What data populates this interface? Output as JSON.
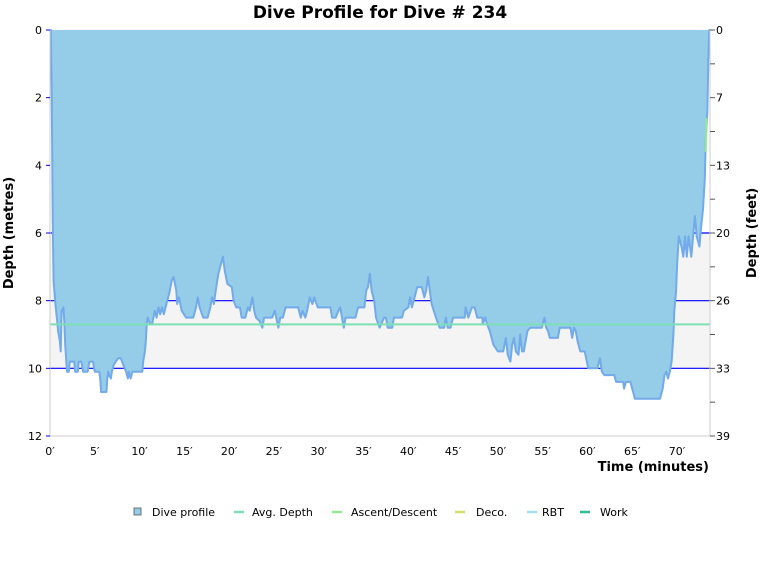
{
  "chart_data": {
    "type": "area",
    "title": "Dive Profile for Dive # 234",
    "xlabel": "Time (minutes)",
    "ylabel": "Depth (metres)",
    "y2label": "Depth (feet)",
    "xlim": [
      0,
      73.7
    ],
    "ylim": [
      0,
      12
    ],
    "y_inverted": true,
    "x_ticks": [
      "0′",
      "5′",
      "10′",
      "15′",
      "20′",
      "25′",
      "30′",
      "35′",
      "40′",
      "45′",
      "50′",
      "55′",
      "60′",
      "65′",
      "70′"
    ],
    "x_tick_values": [
      0,
      5,
      10,
      15,
      20,
      25,
      30,
      35,
      40,
      45,
      50,
      55,
      60,
      65,
      70
    ],
    "y_ticks": [
      "0",
      "2",
      "4",
      "6",
      "8",
      "10",
      "12"
    ],
    "y_tick_values": [
      0,
      2,
      4,
      6,
      8,
      10,
      12
    ],
    "y2_ticks": [
      "0",
      "7",
      "13",
      "20",
      "26",
      "33",
      "39"
    ],
    "reference_lines_m": [
      6,
      8,
      10
    ],
    "shaded_band_m": [
      6,
      10
    ],
    "avg_depth_m": 8.7,
    "legend_position": "bottom",
    "legend": [
      {
        "name": "Dive profile",
        "color": "#95cde8",
        "marker": "square"
      },
      {
        "name": "Avg. Depth",
        "color": "#7ddfb4",
        "marker": "line"
      },
      {
        "name": "Ascent/Descent",
        "color": "#94e894",
        "marker": "line"
      },
      {
        "name": "Deco.",
        "color": "#d6e06e",
        "marker": "line"
      },
      {
        "name": "RBT",
        "color": "#a4def4",
        "marker": "line"
      },
      {
        "name": "Work",
        "color": "#2fbf8f",
        "marker": "line"
      }
    ],
    "series": [
      {
        "name": "Dive profile",
        "points": [
          [
            0,
            0
          ],
          [
            0.1,
            0
          ],
          [
            0.2,
            2.1
          ],
          [
            0.3,
            5.6
          ],
          [
            0.4,
            7.4
          ],
          [
            0.6,
            8.1
          ],
          [
            0.8,
            8.6
          ],
          [
            0.9,
            8.9
          ],
          [
            1.1,
            9.2
          ],
          [
            1.2,
            9.5
          ],
          [
            1.3,
            8.3
          ],
          [
            1.5,
            8.2
          ],
          [
            1.6,
            8.6
          ],
          [
            1.7,
            9.3
          ],
          [
            1.9,
            10.1
          ],
          [
            2.1,
            10.1
          ],
          [
            2.2,
            9.8
          ],
          [
            2.7,
            9.8
          ],
          [
            2.8,
            10.1
          ],
          [
            3.1,
            10.1
          ],
          [
            3.2,
            9.8
          ],
          [
            3.5,
            9.8
          ],
          [
            3.7,
            10.1
          ],
          [
            4.2,
            10.1
          ],
          [
            4.4,
            9.8
          ],
          [
            4.8,
            9.8
          ],
          [
            5.0,
            10.1
          ],
          [
            5.5,
            10.1
          ],
          [
            5.6,
            10.3
          ],
          [
            5.7,
            10.7
          ],
          [
            6.3,
            10.7
          ],
          [
            6.4,
            10.3
          ],
          [
            6.5,
            10.1
          ],
          [
            6.6,
            10.2
          ],
          [
            6.8,
            10.3
          ],
          [
            6.9,
            10.1
          ],
          [
            7.1,
            9.9
          ],
          [
            7.6,
            9.7
          ],
          [
            7.9,
            9.7
          ],
          [
            8.2,
            9.9
          ],
          [
            8.5,
            10.1
          ],
          [
            8.7,
            10.3
          ],
          [
            8.8,
            10.1
          ],
          [
            9.0,
            10.3
          ],
          [
            9.2,
            10.1
          ],
          [
            10.3,
            10.1
          ],
          [
            10.4,
            9.8
          ],
          [
            10.6,
            9.5
          ],
          [
            10.7,
            9.2
          ],
          [
            10.8,
            8.7
          ],
          [
            10.9,
            8.5
          ],
          [
            11.2,
            8.7
          ],
          [
            11.4,
            8.7
          ],
          [
            11.7,
            8.3
          ],
          [
            11.9,
            8.5
          ],
          [
            12.1,
            8.2
          ],
          [
            12.3,
            8.4
          ],
          [
            12.5,
            8.2
          ],
          [
            12.7,
            8.4
          ],
          [
            13.0,
            8.1
          ],
          [
            13.3,
            7.8
          ],
          [
            13.6,
            7.4
          ],
          [
            13.8,
            7.3
          ],
          [
            14.1,
            7.7
          ],
          [
            14.2,
            8.1
          ],
          [
            14.4,
            7.9
          ],
          [
            14.7,
            8.3
          ],
          [
            15.2,
            8.5
          ],
          [
            16.0,
            8.5
          ],
          [
            16.3,
            8.2
          ],
          [
            16.5,
            7.9
          ],
          [
            16.7,
            8.2
          ],
          [
            17.1,
            8.5
          ],
          [
            17.6,
            8.5
          ],
          [
            17.9,
            8.2
          ],
          [
            18.1,
            7.9
          ],
          [
            18.3,
            8.1
          ],
          [
            18.5,
            7.7
          ],
          [
            18.8,
            7.2
          ],
          [
            19.0,
            7.0
          ],
          [
            19.3,
            6.7
          ],
          [
            19.5,
            7.1
          ],
          [
            19.8,
            7.5
          ],
          [
            20.3,
            7.6
          ],
          [
            20.5,
            8.0
          ],
          [
            20.8,
            8.2
          ],
          [
            21.2,
            8.2
          ],
          [
            21.4,
            8.5
          ],
          [
            21.8,
            8.5
          ],
          [
            22.1,
            8.2
          ],
          [
            22.3,
            8.3
          ],
          [
            22.6,
            7.9
          ],
          [
            22.8,
            8.3
          ],
          [
            23.0,
            8.5
          ],
          [
            23.4,
            8.6
          ],
          [
            23.7,
            8.8
          ],
          [
            23.9,
            8.5
          ],
          [
            24.8,
            8.5
          ],
          [
            25.1,
            8.3
          ],
          [
            25.5,
            8.8
          ],
          [
            25.7,
            8.5
          ],
          [
            26.0,
            8.5
          ],
          [
            26.3,
            8.2
          ],
          [
            27.7,
            8.2
          ],
          [
            28.0,
            8.5
          ],
          [
            28.2,
            8.3
          ],
          [
            28.5,
            8.5
          ],
          [
            28.7,
            8.3
          ],
          [
            29.0,
            7.9
          ],
          [
            29.3,
            8.1
          ],
          [
            29.5,
            7.9
          ],
          [
            29.9,
            8.2
          ],
          [
            31.3,
            8.2
          ],
          [
            31.5,
            8.5
          ],
          [
            31.9,
            8.5
          ],
          [
            32.2,
            8.3
          ],
          [
            32.4,
            8.2
          ],
          [
            32.6,
            8.5
          ],
          [
            32.8,
            8.8
          ],
          [
            33.0,
            8.5
          ],
          [
            34.1,
            8.5
          ],
          [
            34.4,
            8.2
          ],
          [
            35.1,
            8.2
          ],
          [
            35.3,
            7.7
          ],
          [
            35.5,
            7.6
          ],
          [
            35.7,
            7.2
          ],
          [
            35.9,
            7.7
          ],
          [
            36.2,
            8.0
          ],
          [
            36.4,
            8.5
          ],
          [
            36.8,
            8.8
          ],
          [
            37.3,
            8.5
          ],
          [
            37.5,
            8.5
          ],
          [
            37.7,
            8.8
          ],
          [
            38.2,
            8.8
          ],
          [
            38.4,
            8.5
          ],
          [
            39.3,
            8.5
          ],
          [
            39.5,
            8.3
          ],
          [
            40.0,
            8.2
          ],
          [
            40.2,
            7.9
          ],
          [
            40.4,
            8.2
          ],
          [
            40.6,
            8.0
          ],
          [
            41.0,
            7.6
          ],
          [
            41.5,
            7.6
          ],
          [
            41.8,
            7.9
          ],
          [
            42.0,
            7.7
          ],
          [
            42.2,
            7.3
          ],
          [
            42.4,
            7.7
          ],
          [
            42.6,
            8.1
          ],
          [
            43.1,
            8.5
          ],
          [
            43.5,
            8.8
          ],
          [
            44.0,
            8.8
          ],
          [
            44.2,
            8.5
          ],
          [
            44.4,
            8.8
          ],
          [
            44.7,
            8.8
          ],
          [
            45.0,
            8.5
          ],
          [
            46.3,
            8.5
          ],
          [
            46.4,
            8.2
          ],
          [
            46.7,
            8.5
          ],
          [
            47.1,
            8.2
          ],
          [
            47.4,
            8.2
          ],
          [
            47.7,
            8.5
          ],
          [
            48.3,
            8.5
          ],
          [
            48.3,
            8.7
          ],
          [
            48.6,
            8.5
          ],
          [
            48.8,
            8.7
          ],
          [
            49.1,
            8.9
          ],
          [
            49.5,
            9.3
          ],
          [
            50.0,
            9.5
          ],
          [
            50.6,
            9.5
          ],
          [
            50.9,
            9.1
          ],
          [
            51.1,
            9.6
          ],
          [
            51.4,
            9.8
          ],
          [
            51.6,
            9.3
          ],
          [
            51.8,
            9.1
          ],
          [
            52.0,
            9.5
          ],
          [
            52.3,
            9.6
          ],
          [
            52.5,
            9.0
          ],
          [
            52.7,
            9.5
          ],
          [
            52.9,
            9.5
          ],
          [
            53.3,
            8.9
          ],
          [
            53.6,
            8.8
          ],
          [
            54.9,
            8.8
          ],
          [
            55.2,
            8.5
          ],
          [
            55.4,
            8.8
          ],
          [
            55.6,
            8.9
          ],
          [
            55.8,
            9.1
          ],
          [
            56.7,
            9.1
          ],
          [
            56.9,
            8.8
          ],
          [
            58.1,
            8.8
          ],
          [
            58.3,
            9.1
          ],
          [
            58.5,
            8.8
          ],
          [
            58.7,
            8.9
          ],
          [
            58.9,
            9.2
          ],
          [
            59.2,
            9.5
          ],
          [
            59.7,
            9.5
          ],
          [
            60.1,
            10.0
          ],
          [
            61.1,
            10.0
          ],
          [
            61.4,
            9.7
          ],
          [
            61.6,
            10.1
          ],
          [
            61.9,
            10.2
          ],
          [
            63.0,
            10.2
          ],
          [
            63.2,
            10.4
          ],
          [
            64.0,
            10.4
          ],
          [
            64.1,
            10.6
          ],
          [
            64.3,
            10.4
          ],
          [
            64.8,
            10.4
          ],
          [
            65.0,
            10.6
          ],
          [
            65.3,
            10.9
          ],
          [
            68.1,
            10.9
          ],
          [
            68.4,
            10.6
          ],
          [
            68.6,
            10.2
          ],
          [
            68.8,
            10.1
          ],
          [
            69.0,
            10.3
          ],
          [
            69.2,
            10.1
          ],
          [
            69.4,
            9.8
          ],
          [
            69.6,
            9.0
          ],
          [
            69.7,
            8.3
          ],
          [
            69.9,
            7.7
          ],
          [
            70.0,
            7.0
          ],
          [
            70.2,
            6.1
          ],
          [
            70.5,
            6.4
          ],
          [
            70.7,
            6.7
          ],
          [
            70.9,
            6.1
          ],
          [
            71.1,
            6.7
          ],
          [
            71.3,
            6.1
          ],
          [
            71.6,
            6.7
          ],
          [
            71.8,
            6.1
          ],
          [
            72.0,
            5.5
          ],
          [
            72.2,
            6.1
          ],
          [
            72.5,
            6.4
          ],
          [
            72.7,
            5.8
          ],
          [
            72.9,
            5.3
          ],
          [
            73.1,
            4.4
          ],
          [
            73.2,
            3.3
          ],
          [
            73.4,
            2.4
          ],
          [
            73.5,
            0.9
          ],
          [
            73.6,
            0
          ],
          [
            73.7,
            0
          ]
        ]
      },
      {
        "name": "Avg. Depth",
        "points": [
          [
            0,
            8.7
          ],
          [
            73.7,
            8.7
          ]
        ]
      },
      {
        "name": "Ascent/Descent",
        "points": [
          [
            73.3,
            2.6
          ],
          [
            73.2,
            3.6
          ]
        ]
      }
    ]
  }
}
